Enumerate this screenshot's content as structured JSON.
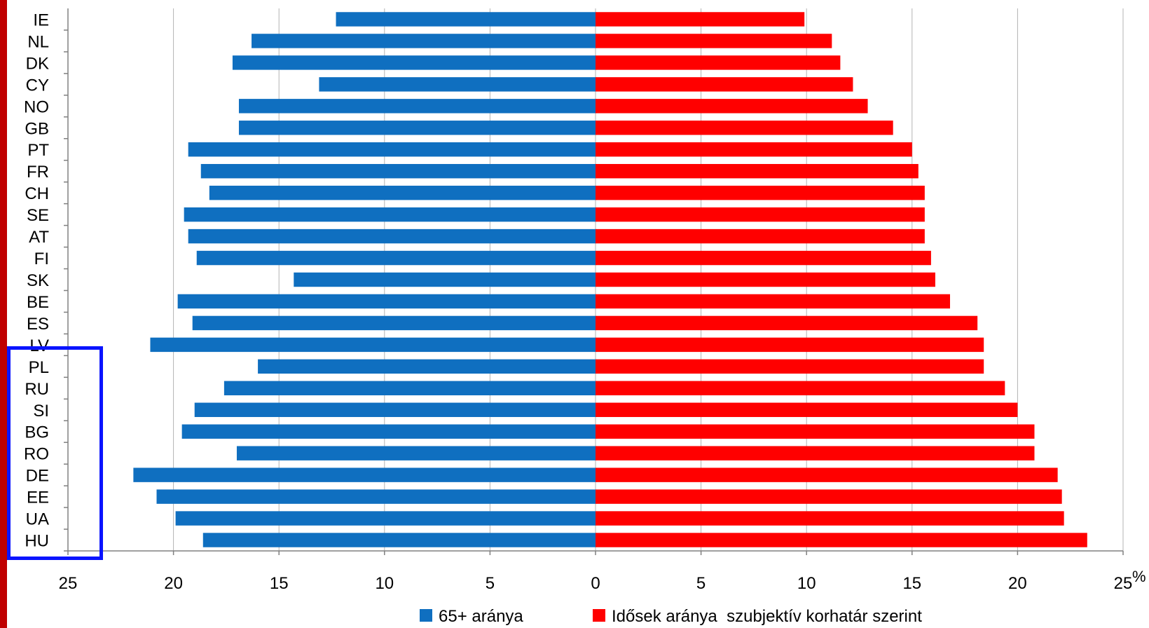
{
  "chart_data": {
    "type": "bar",
    "orientation": "horizontal-diverging",
    "categories": [
      "IE",
      "NL",
      "DK",
      "CY",
      "NO",
      "GB",
      "PT",
      "FR",
      "CH",
      "SE",
      "AT",
      "FI",
      "SK",
      "BE",
      "ES",
      "LV",
      "PL",
      "RU",
      "SI",
      "BG",
      "RO",
      "DE",
      "EE",
      "UA",
      "HU"
    ],
    "series": [
      {
        "name": "65+ aránya",
        "color": "#0f6fc0",
        "side": "left",
        "values": [
          12.3,
          16.3,
          17.2,
          13.1,
          16.9,
          16.9,
          19.3,
          18.7,
          18.3,
          19.5,
          19.3,
          18.9,
          14.3,
          19.8,
          19.1,
          21.1,
          16.0,
          17.6,
          19.0,
          19.6,
          17.0,
          21.9,
          20.8,
          19.9,
          18.6
        ]
      },
      {
        "name": "Idősek aránya  szubjektív korhatár szerint",
        "color": "#ff0000",
        "side": "right",
        "values": [
          9.9,
          11.2,
          11.6,
          12.2,
          12.9,
          14.1,
          15.0,
          15.3,
          15.6,
          15.6,
          15.6,
          15.9,
          16.1,
          16.8,
          18.1,
          18.4,
          18.4,
          19.4,
          20.0,
          20.8,
          20.8,
          21.9,
          22.1,
          22.2,
          23.3
        ]
      }
    ],
    "x_ticks": [
      "25",
      "20",
      "15",
      "10",
      "5",
      "0",
      "5",
      "10",
      "15",
      "20",
      "25"
    ],
    "x_unit": "%",
    "xlim": [
      -25,
      25
    ],
    "grid": "vertical",
    "legend_position": "bottom",
    "highlight_box_color": "#0a14ff",
    "left_strip_color": "#c00000"
  }
}
